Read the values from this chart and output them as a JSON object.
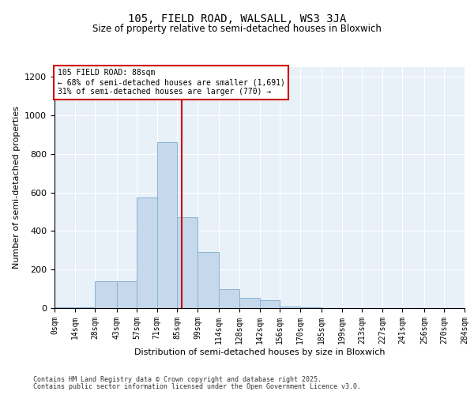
{
  "title_line1": "105, FIELD ROAD, WALSALL, WS3 3JA",
  "title_line2": "Size of property relative to semi-detached houses in Bloxwich",
  "xlabel": "Distribution of semi-detached houses by size in Bloxwich",
  "ylabel": "Number of semi-detached properties",
  "bar_lefts": [
    0,
    14,
    28,
    43,
    57,
    71,
    85,
    99,
    114,
    128,
    142,
    156,
    170
  ],
  "bar_rights": [
    14,
    28,
    43,
    57,
    71,
    85,
    99,
    114,
    128,
    142,
    156,
    170,
    185
  ],
  "bar_heights": [
    5,
    5,
    140,
    140,
    575,
    860,
    470,
    290,
    100,
    55,
    40,
    10,
    5
  ],
  "property_size": 88,
  "pct_smaller": 68,
  "pct_larger": 31,
  "count_smaller": "1,691",
  "count_larger": "770",
  "bar_color": "#c5d8ec",
  "bar_edge_color": "#8ab4d4",
  "vline_color": "#cc0000",
  "annotation_box_color": "#cc0000",
  "background_color": "#e8f0f8",
  "grid_color": "#ffffff",
  "ylim": [
    0,
    1250
  ],
  "yticks": [
    0,
    200,
    400,
    600,
    800,
    1000,
    1200
  ],
  "xtick_positions": [
    0,
    14,
    28,
    43,
    57,
    71,
    85,
    99,
    114,
    128,
    142,
    156,
    170,
    185,
    199,
    213,
    227,
    241,
    256,
    270,
    284
  ],
  "xtick_labels": [
    "0sqm",
    "14sqm",
    "28sqm",
    "43sqm",
    "57sqm",
    "71sqm",
    "85sqm",
    "99sqm",
    "114sqm",
    "128sqm",
    "142sqm",
    "156sqm",
    "170sqm",
    "185sqm",
    "199sqm",
    "213sqm",
    "227sqm",
    "241sqm",
    "256sqm",
    "270sqm",
    "284sqm"
  ],
  "xlim": [
    0,
    284
  ],
  "footer_line1": "Contains HM Land Registry data © Crown copyright and database right 2025.",
  "footer_line2": "Contains public sector information licensed under the Open Government Licence v3.0."
}
